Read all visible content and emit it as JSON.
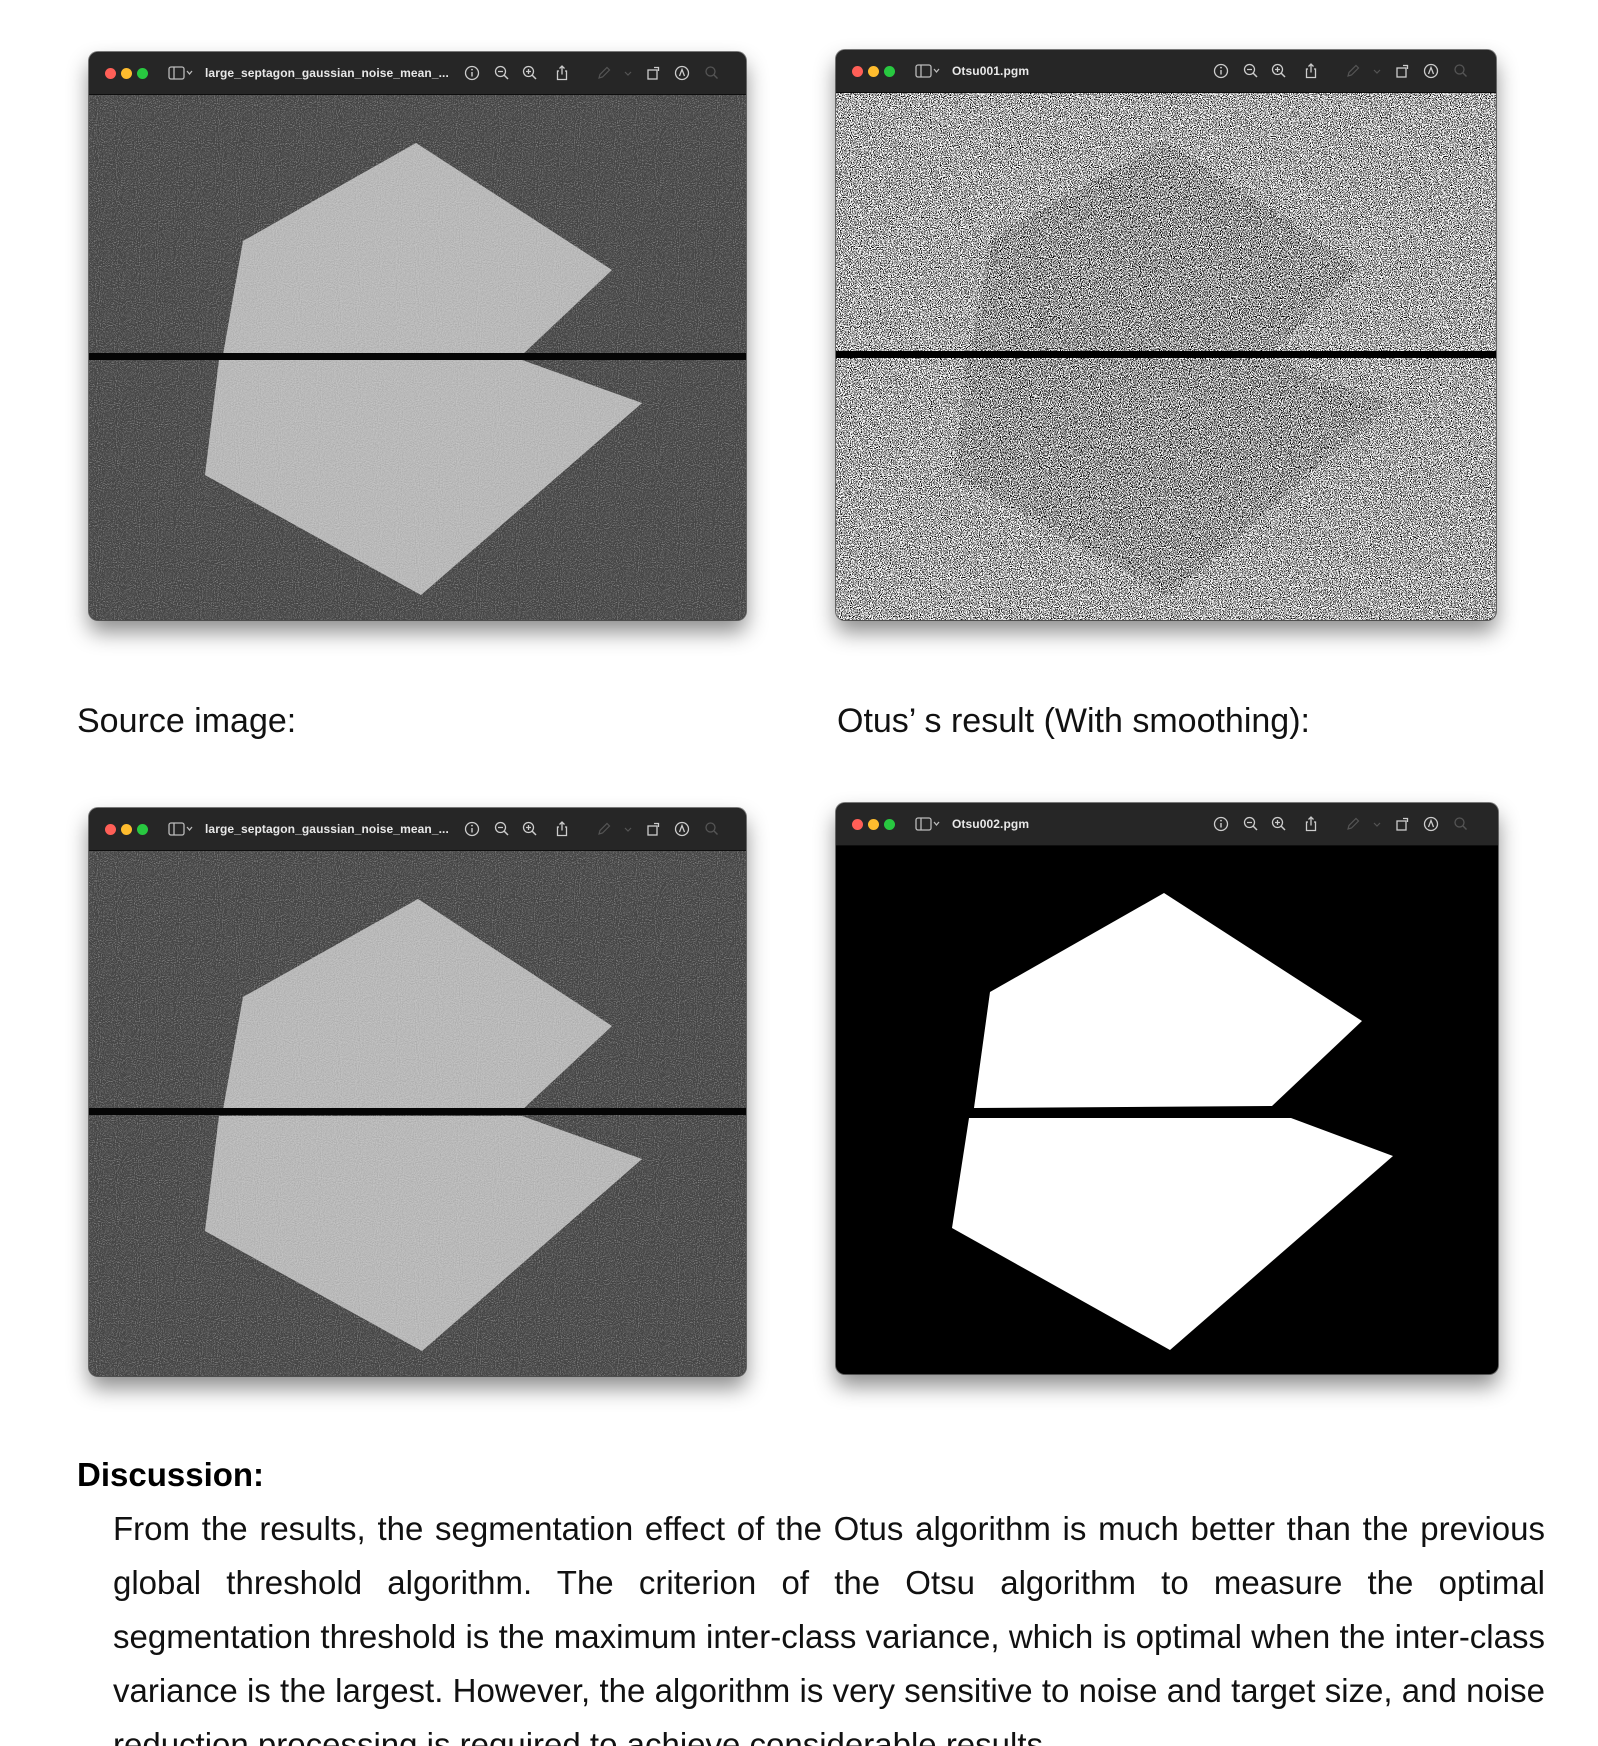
{
  "windows": {
    "source_top": {
      "title": "large_septagon_gaussian_noise_mean_..."
    },
    "otsu_top": {
      "title": "Otsu001.pgm"
    },
    "source_bottom": {
      "title": "large_septagon_gaussian_noise_mean_..."
    },
    "otsu_bottom": {
      "title": "Otsu002.pgm"
    }
  },
  "labels": {
    "source": "Source image:",
    "otsu_smoothing": "Otus’ s result (With smoothing):"
  },
  "discussion": {
    "heading": "Discussion:",
    "text": "From the results, the segmentation effect of the Otus algorithm is much better than the previous global threshold algorithm. The criterion of the Otsu algorithm to measure the optimal segmentation threshold is the maximum inter-class variance, which is optimal when the inter-class variance is the largest. However, the algorithm is very sensitive to noise and target size, and noise reduction processing is required to achieve considerable results."
  },
  "icons": [
    "close-icon",
    "minimize-icon",
    "zoom-icon",
    "sidebar-icon",
    "info-icon",
    "zoom-out-icon",
    "zoom-in-icon",
    "share-icon",
    "markup-icon",
    "rotate-icon",
    "annotate-icon",
    "search-icon"
  ],
  "colors": {
    "window_bg": "#1c1c1c",
    "titlebar": "#262626",
    "shape_gray": "#b8b8b8",
    "noise_bg": "#464646"
  }
}
